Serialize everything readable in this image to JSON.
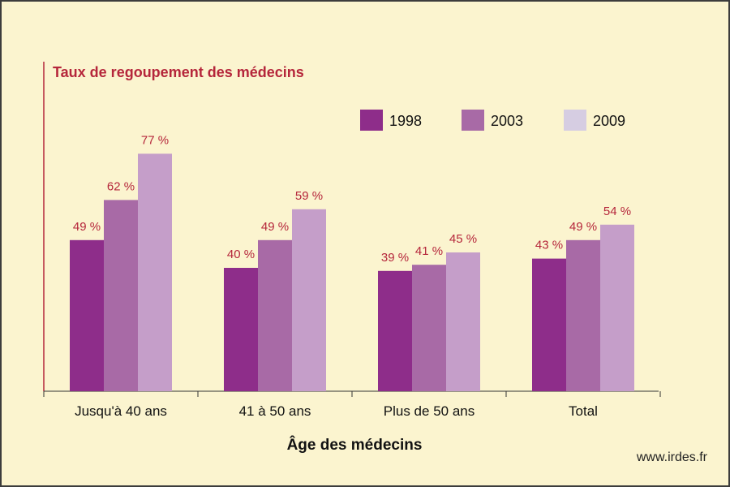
{
  "chart_data": {
    "type": "bar",
    "title": "Taux de regoupement des médecins",
    "xlabel": "Âge des médecins",
    "ylabel": "",
    "ylim": [
      0,
      100
    ],
    "grid": false,
    "legend_position": "top-right",
    "categories": [
      "Jusqu'à 40 ans",
      "41 à 50 ans",
      "Plus de 50 ans",
      "Total"
    ],
    "series": [
      {
        "name": "1998",
        "color": "#8e2d8a",
        "values": [
          49,
          40,
          39,
          43
        ],
        "labels": [
          "49 %",
          "40 %",
          "39 %",
          "43 %"
        ]
      },
      {
        "name": "2003",
        "color": "#a86aa6",
        "values": [
          62,
          49,
          41,
          49
        ],
        "labels": [
          "62 %",
          "49 %",
          "41 %",
          "49 %"
        ]
      },
      {
        "name": "2009",
        "color": "#c59ec9",
        "values": [
          77,
          59,
          45,
          54
        ],
        "labels": [
          "77 %",
          "59 %",
          "45 %",
          "54 %"
        ]
      }
    ],
    "legend_swatch_colors": [
      "#8e2d8a",
      "#a86aa6",
      "#d6cde2"
    ],
    "axis_color": "#b5263b",
    "label_color": "#b5263b"
  },
  "source": "www.irdes.fr"
}
